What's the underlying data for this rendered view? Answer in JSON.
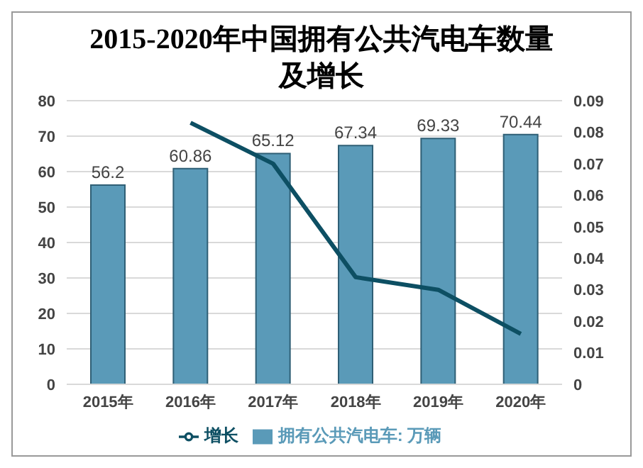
{
  "chart_data": {
    "type": "bar",
    "title": "2015-2020年中国拥有公共汽电车数量及增长",
    "categories": [
      "2015年",
      "2016年",
      "2017年",
      "2018年",
      "2019年",
      "2020年"
    ],
    "series": [
      {
        "name": "拥有公共汽电车: 万辆",
        "color": "#5a9ab8",
        "values": [
          56.2,
          60.86,
          65.12,
          67.34,
          69.33,
          70.44
        ],
        "value_labels": [
          "56.2",
          "60.86",
          "65.12",
          "67.34",
          "69.33",
          "70.44"
        ]
      },
      {
        "name": "增长",
        "type": "line",
        "axis": "y2",
        "color": "#0d4f63",
        "values": [
          null,
          0.083,
          0.07,
          0.034,
          0.03,
          0.016
        ]
      }
    ],
    "ylim": [
      0,
      80
    ],
    "yticks": [
      0,
      10,
      20,
      30,
      40,
      50,
      60,
      70,
      80
    ],
    "y2lim": [
      0,
      0.09
    ],
    "y2ticks": [
      0,
      0.01,
      0.02,
      0.03,
      0.04,
      0.05,
      0.06,
      0.07,
      0.08,
      0.09
    ],
    "grid": "y",
    "legend": "bottom",
    "marker": "none"
  }
}
